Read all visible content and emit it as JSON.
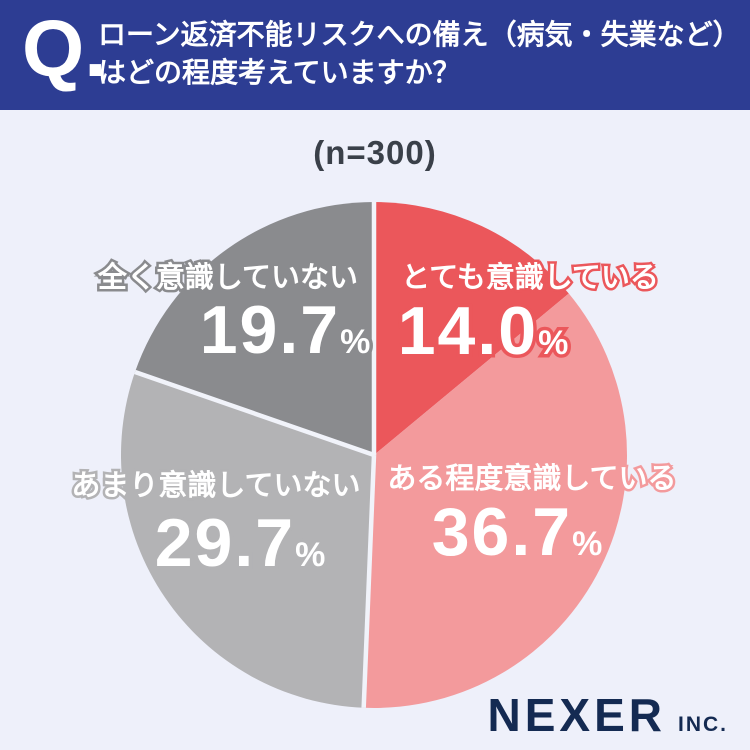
{
  "header": {
    "q_mark": "Q.",
    "question_line1": "ローン返済不能リスクへの備え（病気・失業など）",
    "question_line2": "はどの程度考えていますか？"
  },
  "sample_size": "(n=300)",
  "chart_data": {
    "type": "pie",
    "title": "ローン返済不能リスクへの備え（病気・失業など）はどの程度考えていますか？",
    "sample_label": "(n=300)",
    "unit": "%",
    "direction": "clockwise",
    "start_angle_deg": 0,
    "slices": [
      {
        "label": "とても意識している",
        "value": 14.0,
        "display": "14.0",
        "color": "#EB575B"
      },
      {
        "label": "ある程度意識している",
        "value": 36.7,
        "display": "36.7",
        "color": "#F39A9C"
      },
      {
        "label": "あまり意識していない",
        "value": 29.7,
        "display": "29.7",
        "color": "#B3B3B5"
      },
      {
        "label": "全く意識していない",
        "value": 19.7,
        "display": "19.7",
        "color": "#8A8B8E"
      }
    ],
    "white_dividers_at_boundaries": [
      0,
      2,
      3
    ],
    "divider_color": "#F1F3FA",
    "background_color": "#EEF0FA",
    "legend": "labels drawn on chart"
  },
  "footer": {
    "brand": "NEXER",
    "brand_suffix": "INC."
  }
}
